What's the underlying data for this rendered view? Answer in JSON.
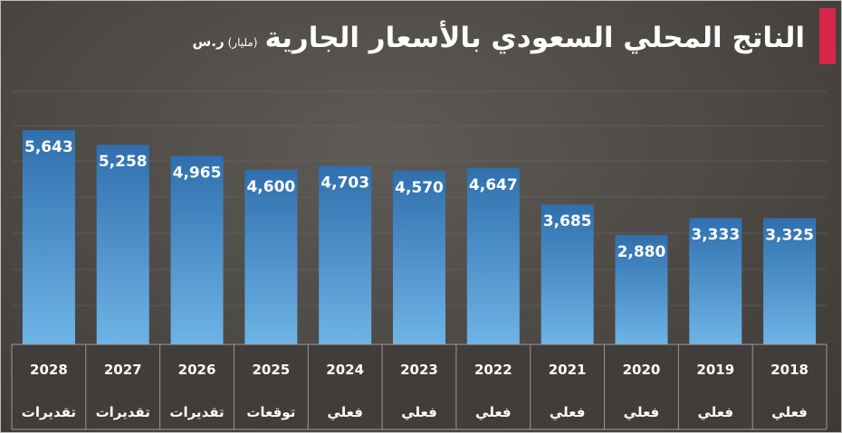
{
  "title": "الناتج المحلي السعودي بالأسعار الجارية",
  "unit": "(مليار)",
  "currency": "ر.س",
  "colors": {
    "bar_top": "#2f6fae",
    "bar_bottom": "#6eb4e6",
    "value_text": "#ffffff",
    "axis_text": "#ffffff",
    "accent": "#d8264a",
    "table_bg": "#403d3a",
    "table_border": "#9a9a9a"
  },
  "chart_data": {
    "type": "bar",
    "title": "الناتج المحلي السعودي بالأسعار الجارية",
    "categories": [
      "2028",
      "2027",
      "2026",
      "2025",
      "2024",
      "2023",
      "2022",
      "2021",
      "2020",
      "2019",
      "2018"
    ],
    "category_notes": [
      "تقديرات",
      "تقديرات",
      "تقديرات",
      "توقعات",
      "فعلي",
      "فعلي",
      "فعلي",
      "فعلي",
      "فعلي",
      "فعلي",
      "فعلي"
    ],
    "value_labels": [
      "5,643",
      "5,258",
      "4,965",
      "4,600",
      "4,703",
      "4,570",
      "4,647",
      "3,685",
      "2,880",
      "3,333",
      "3,325"
    ],
    "values": [
      5643,
      5258,
      4965,
      4600,
      4703,
      4570,
      4647,
      3685,
      2880,
      3333,
      3325
    ],
    "ylim": [
      0,
      5643
    ],
    "grid": true,
    "legend": "none"
  }
}
